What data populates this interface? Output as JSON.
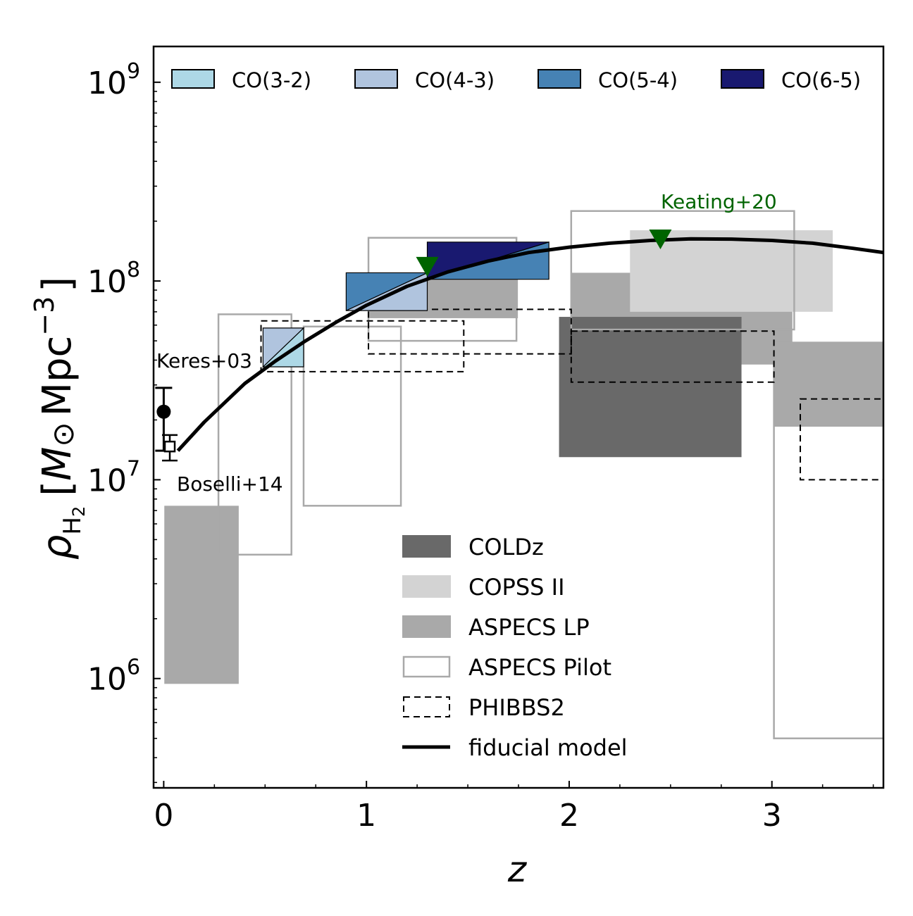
{
  "chart_data": {
    "type": "area",
    "xlabel": "z",
    "ylabel_html": "ρ<tspan>H</tspan><tspan>2</tspan> [M⊙ Mpc⁻³]",
    "ylabel": {
      "rho": "ρ",
      "sub_H": "H",
      "sub_2": "2",
      "unit_open": "[",
      "unit_M": "M",
      "unit_odot": "⊙",
      "unit_mpc": "Mpc",
      "unit_exp": "−3",
      "unit_close": "]"
    },
    "xlim": [
      -0.05,
      3.55
    ],
    "ylim_log10": [
      5.45,
      9.18
    ],
    "y_scale": "log",
    "x_ticks": [
      0,
      1,
      2,
      3
    ],
    "x_tick_labels": [
      "0",
      "1",
      "2",
      "3"
    ],
    "y_ticks_log10": [
      6,
      7,
      8,
      9
    ],
    "y_tick_labels": [
      {
        "base": "10",
        "exp": "6"
      },
      {
        "base": "10",
        "exp": "7"
      },
      {
        "base": "10",
        "exp": "8"
      },
      {
        "base": "10",
        "exp": "9"
      }
    ],
    "colors": {
      "co32": "#add8e6",
      "co43": "#b0c4de",
      "co54": "#4682b4",
      "co65": "#191970",
      "coldz": "#696969",
      "copss": "#d3d3d3",
      "aspecs_lp": "#a9a9a9",
      "aspecs_pilot": "#a9a9a9",
      "keating": "#006400"
    },
    "legend_top": [
      {
        "key": "co32",
        "label": "CO(3-2)"
      },
      {
        "key": "co43",
        "label": "CO(4-3)"
      },
      {
        "key": "co54",
        "label": "CO(5-4)"
      },
      {
        "key": "co65",
        "label": "CO(6-5)"
      }
    ],
    "legend_main": [
      {
        "key": "coldz",
        "label": "COLDz"
      },
      {
        "key": "copss",
        "label": "COPSS II"
      },
      {
        "key": "aspecs_lp",
        "label": "ASPECS LP"
      },
      {
        "key": "aspecs_pilot",
        "label": "ASPECS Pilot"
      },
      {
        "key": "phibbs2",
        "label": "PHIBBS2"
      },
      {
        "key": "fiducial",
        "label": "fiducial model"
      }
    ],
    "aspecs_lp": [
      {
        "z": [
          0.003,
          0.37
        ],
        "rho": [
          940000.0,
          7400000.0
        ]
      },
      {
        "z": [
          1.006,
          1.747
        ],
        "rho": [
          65000000.0,
          110000000.0
        ]
      },
      {
        "z": [
          2.011,
          3.101
        ],
        "rho": [
          38000000.0,
          110000000.0
        ]
      },
      {
        "z": [
          3.01,
          3.55
        ],
        "rho": [
          18500000.0,
          49000000.0
        ]
      }
    ],
    "copss": [
      {
        "z": [
          2.3,
          3.3
        ],
        "rho": [
          70000000.0,
          180000000.0
        ]
      }
    ],
    "coldz": [
      {
        "z": [
          1.95,
          2.85
        ],
        "rho": [
          13000000.0,
          66000000.0
        ]
      }
    ],
    "aspecs_pilot": [
      {
        "z": [
          0.27,
          0.63
        ],
        "rho": [
          4200000.0,
          68000000.0
        ]
      },
      {
        "z": [
          0.69,
          1.17
        ],
        "rho": [
          7400000.0,
          59000000.0
        ]
      },
      {
        "z": [
          1.01,
          1.74
        ],
        "rho": [
          50000000.0,
          165000000.0
        ]
      },
      {
        "z": [
          2.01,
          3.11
        ],
        "rho": [
          57000000.0,
          225000000.0
        ]
      },
      {
        "z": [
          3.01,
          3.55
        ],
        "rho": [
          500000.0,
          49000000.0
        ]
      }
    ],
    "phibbs2": [
      {
        "z": [
          0.48,
          1.48
        ],
        "rho": [
          35000000.0,
          63000000.0
        ]
      },
      {
        "z": [
          1.01,
          2.01
        ],
        "rho": [
          43000000.0,
          72000000.0
        ]
      },
      {
        "z": [
          2.01,
          3.01
        ],
        "rho": [
          31000000.0,
          56000000.0
        ]
      },
      {
        "z": [
          3.14,
          3.55
        ],
        "rho": [
          10000000.0,
          25500000.0
        ]
      }
    ],
    "co_boxes": [
      {
        "key": "co32",
        "z": [
          0.49,
          0.69
        ],
        "rho": [
          37000000.0,
          58000000.0
        ],
        "diag": "lower"
      },
      {
        "key": "co43",
        "z": [
          0.49,
          0.69
        ],
        "rho": [
          37000000.0,
          58000000.0
        ],
        "diag": "upper"
      },
      {
        "key": "co43",
        "z": [
          0.9,
          1.3
        ],
        "rho": [
          71000000.0,
          110000000.0
        ],
        "diag": "lower"
      },
      {
        "key": "co54",
        "z": [
          0.9,
          1.3
        ],
        "rho": [
          71000000.0,
          110000000.0
        ],
        "diag": "upper"
      },
      {
        "key": "co54",
        "z": [
          1.3,
          1.9
        ],
        "rho": [
          102000000.0,
          157000000.0
        ],
        "diag": "lower"
      },
      {
        "key": "co65",
        "z": [
          1.3,
          1.9
        ],
        "rho": [
          102000000.0,
          157000000.0
        ],
        "diag": "upper"
      }
    ],
    "fiducial_model": {
      "z": [
        0.07,
        0.2,
        0.4,
        0.55,
        0.7,
        0.85,
        1.0,
        1.2,
        1.4,
        1.6,
        1.8,
        2.0,
        2.2,
        2.4,
        2.6,
        2.8,
        3.0,
        3.2,
        3.4,
        3.55
      ],
      "rho": [
        14000000.0,
        19500000.0,
        30500000.0,
        39500000.0,
        50000000.0,
        62000000.0,
        75500000.0,
        94000000.0,
        111000000.0,
        126000000.0,
        139000000.0,
        148000000.0,
        155000000.0,
        160000000.0,
        163000000.0,
        162500000.0,
        160000000.0,
        155000000.0,
        146000000.0,
        139000000.0
      ]
    },
    "keating20": {
      "label": "Keating+20",
      "points": [
        {
          "z": 1.3,
          "rho": 118000000.0
        },
        {
          "z": 2.45,
          "rho": 162000000.0
        }
      ]
    },
    "keres03": {
      "label": "Keres+03",
      "z": 0.0,
      "rho": 22000000.0,
      "err": [
        14000000.0,
        29000000.0
      ]
    },
    "boselli14": {
      "label": "Boselli+14",
      "z": 0.03,
      "rho": 14700000.0,
      "err": [
        12500000.0,
        16800000.0
      ]
    }
  }
}
